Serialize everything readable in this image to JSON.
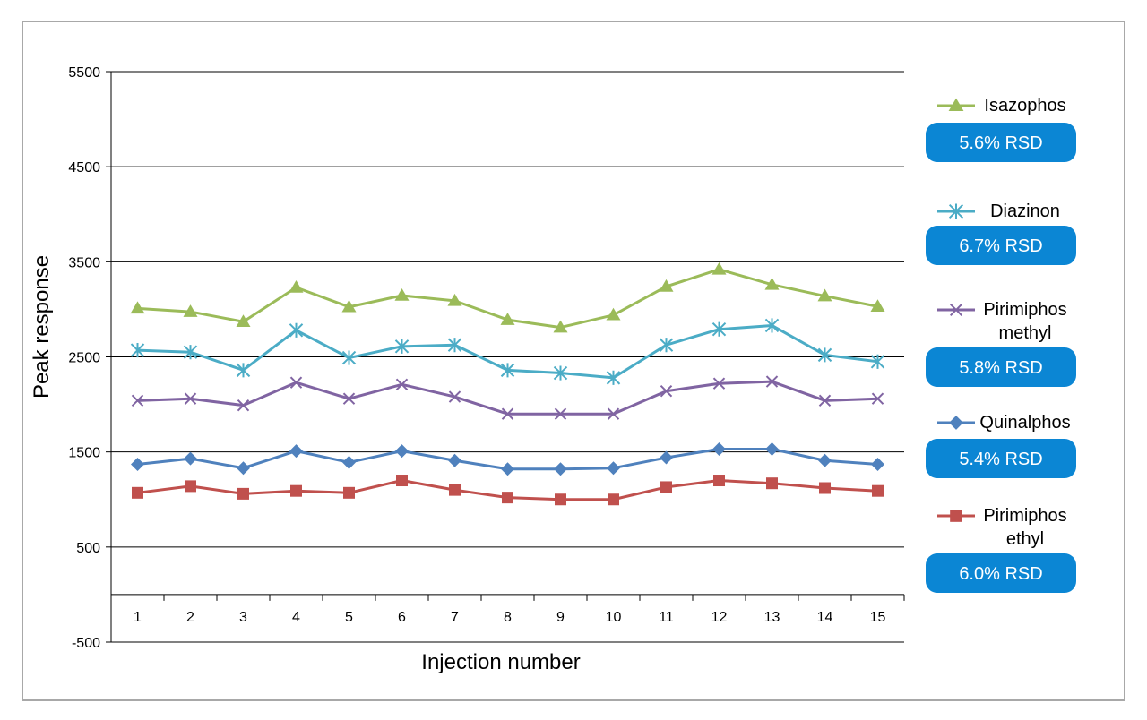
{
  "chart_data": {
    "type": "line",
    "title": "",
    "xlabel": "Injection number",
    "ylabel": "Peak response",
    "ylim": [
      -500,
      5500
    ],
    "yticks": [
      -500,
      500,
      1500,
      2500,
      3500,
      4500,
      5500
    ],
    "x": [
      1,
      2,
      3,
      4,
      5,
      6,
      7,
      8,
      9,
      10,
      11,
      12,
      13,
      14,
      15
    ],
    "x_labels": [
      "1",
      "2",
      "3",
      "4",
      "5",
      "6",
      "7",
      "8",
      "9",
      "10",
      "11",
      "12",
      "13",
      "14",
      "15"
    ],
    "grid": "horizontal",
    "legend_position": "right",
    "series": [
      {
        "name": "Isazophos",
        "name_lines": [
          "Isazophos"
        ],
        "marker": "triangle",
        "color": "#9bbb59",
        "rsd": "5.6% RSD",
        "values": [
          3010,
          2975,
          2870,
          3230,
          3025,
          3145,
          3090,
          2890,
          2810,
          2940,
          3240,
          3420,
          3260,
          3140,
          3030
        ]
      },
      {
        "name": "Diazinon",
        "name_lines": [
          "Diazinon"
        ],
        "marker": "star",
        "color": "#4bacc6",
        "rsd": "6.7% RSD",
        "values": [
          2570,
          2550,
          2360,
          2780,
          2490,
          2610,
          2625,
          2360,
          2330,
          2280,
          2625,
          2790,
          2830,
          2520,
          2450
        ]
      },
      {
        "name": "Pirimiphos methyl",
        "name_lines": [
          "Pirimiphos",
          "methyl"
        ],
        "marker": "x",
        "color": "#8064a2",
        "rsd": "5.8% RSD",
        "values": [
          2040,
          2060,
          1990,
          2230,
          2060,
          2210,
          2080,
          1900,
          1900,
          1900,
          2140,
          2220,
          2240,
          2040,
          2060
        ]
      },
      {
        "name": "Quinalphos",
        "name_lines": [
          "Quinalphos"
        ],
        "marker": "diamond",
        "color": "#4f81bd",
        "rsd": "5.4% RSD",
        "values": [
          1370,
          1430,
          1330,
          1510,
          1390,
          1510,
          1410,
          1320,
          1320,
          1330,
          1440,
          1530,
          1530,
          1410,
          1370
        ]
      },
      {
        "name": "Pirimiphos ethyl",
        "name_lines": [
          "Pirimiphos",
          "ethyl"
        ],
        "marker": "square",
        "color": "#c0504d",
        "rsd": "6.0% RSD",
        "values": [
          1070,
          1140,
          1060,
          1090,
          1070,
          1200,
          1100,
          1020,
          1000,
          1000,
          1130,
          1200,
          1170,
          1120,
          1090
        ]
      }
    ]
  }
}
